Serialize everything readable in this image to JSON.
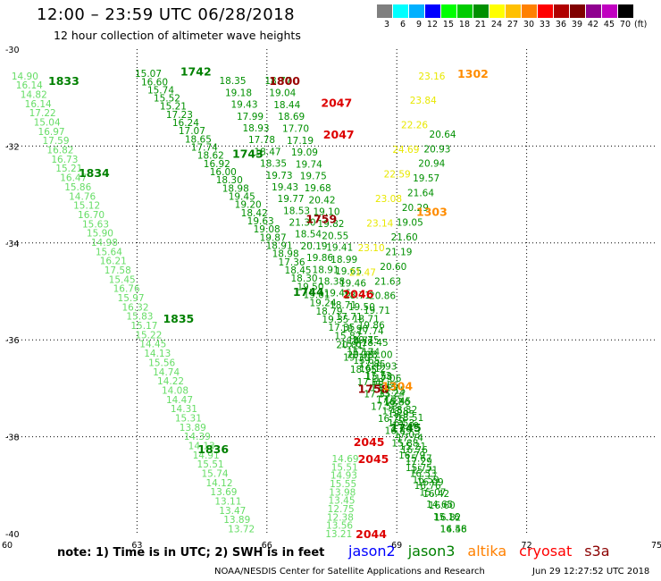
{
  "header": {
    "title": "12:00 – 23:59 UTC 06/28/2018",
    "subtitle": "12 hour collection of altimeter wave heights"
  },
  "legend": {
    "unit": "(ft)",
    "colors": [
      "#7f7f7f",
      "#00ffff",
      "#00b0ff",
      "#0000ff",
      "#00ff00",
      "#00cc00",
      "#009000",
      "#ffff00",
      "#ffc000",
      "#ff8000",
      "#ff0000",
      "#b00000",
      "#800000",
      "#900090",
      "#c000c0",
      "#000000"
    ],
    "labels": [
      "3",
      "6",
      "9",
      "12",
      "15",
      "18",
      "21",
      "24",
      "27",
      "30",
      "33",
      "36",
      "39",
      "42",
      "45",
      "70"
    ]
  },
  "note": "note:  1) Time is in UTC;  2) SWH is in feet",
  "satellites": [
    {
      "name": "jason2",
      "color": "#0000ff"
    },
    {
      "name": "jason3",
      "color": "#008000"
    },
    {
      "name": "altika",
      "color": "#ff8000"
    },
    {
      "name": "cryosat",
      "color": "#ff0000"
    },
    {
      "name": "s3a",
      "color": "#8b0000"
    }
  ],
  "footer": {
    "credit": "NOAA/NESDIS Center for Satellite Applications and Research",
    "timestamp": "Jun 29 12:27:52 UTC 2018"
  },
  "chart_data": {
    "type": "scatter",
    "xlim": [
      60,
      75
    ],
    "ylim": [
      -40,
      -30
    ],
    "x_ticks": [
      60,
      63,
      66,
      69,
      72,
      75
    ],
    "y_ticks": [
      -30,
      -32,
      -34,
      -36,
      -38,
      -40
    ],
    "grid": true,
    "colors": {
      "pale": "#66dd66",
      "green": "#009000",
      "yellow": "#e8e800",
      "time": "#008000",
      "red": "#dd0000",
      "orange": "#ff8c00",
      "maroon": "#990000"
    },
    "series": [
      {
        "name": "track A",
        "c": "pale",
        "x0": 60.1,
        "y0": -30.55,
        "x1": 65.1,
        "y1": -39.9,
        "values": [
          "14.90",
          "16.14",
          "14.82",
          "16.14",
          "17.22",
          "15.04",
          "16.97",
          "17.59",
          "16.82",
          "16.73",
          "15.21",
          "16.47",
          "15.86",
          "14.76",
          "15.12",
          "16.70",
          "15.63",
          "15.90",
          "14.98",
          "15.64",
          "16.21",
          "17.58",
          "15.45",
          "16.76",
          "15.97",
          "16.32",
          "15.83",
          "15.17",
          "15.22",
          "14.45",
          "14.13",
          "15.56",
          "14.74",
          "14.22",
          "14.08",
          "14.47",
          "14.31",
          "15.31",
          "13.89",
          "14.39",
          "14.13",
          "14.91",
          "15.51",
          "15.74",
          "14.12",
          "13.69",
          "13.11",
          "13.47",
          "13.89",
          "13.72"
        ]
      },
      {
        "name": "track B",
        "c": "green",
        "x0": 62.95,
        "y0": -30.5,
        "x1": 69.0,
        "y1": -37.6,
        "values": [
          "15.07",
          "16.60",
          "15.74",
          "15.52",
          "15.21",
          "17.23",
          "16.24",
          "17.07",
          "18.65",
          "17.74",
          "18.62",
          "16.92",
          "16.00",
          "18.30",
          "18.98",
          "19.45",
          "19.20",
          "18.42",
          "19.63",
          "19.08",
          "19.87",
          "18.91",
          "18.98",
          "17.36",
          "18.45",
          "18.30",
          "19.50",
          "19.01",
          "19.24",
          "18.79",
          "19.35",
          "17.35",
          "15.82",
          "15.67",
          "16.12",
          "15.65",
          "16.12",
          "15.58",
          "15.86",
          "15.24",
          "15.45",
          "18.32",
          "18.51"
        ]
      },
      {
        "name": "track C",
        "c": "green",
        "x0": 64.9,
        "y0": -30.65,
        "x1": 70.0,
        "y1": -39.9,
        "values": [
          "18.35",
          "19.18",
          "19.43",
          "17.99",
          "18.93",
          "17.78",
          "18.47",
          "18.35",
          "19.73",
          "19.43",
          "19.77",
          "18.53",
          "21.30",
          "18.54",
          "20.19",
          "19.86",
          "18.91",
          "18.38",
          "19.46",
          "18.71",
          "17.71",
          "18.90",
          "18.71",
          "17.74",
          "17.85",
          "17.73",
          "17.15",
          "17.35",
          "17.58",
          "16.53",
          "17.03",
          "15.21",
          "15.67",
          "15.71",
          "16.09",
          "16.42",
          "16.60",
          "16.82",
          "16.48"
        ]
      },
      {
        "name": "track D",
        "c": "green",
        "x0": 65.95,
        "y0": -30.65,
        "x1": 69.4,
        "y1": -39.0,
        "values": [
          "18.77",
          "19.04",
          "18.44",
          "18.69",
          "17.70",
          "17.19",
          "19.09",
          "19.74",
          "19.75",
          "19.68",
          "20.42",
          "19.10",
          "19.82",
          "20.55",
          "19.41",
          "18.99",
          "19.65",
          "19.46",
          "18.71",
          "19.50",
          "18.71",
          "17.74",
          "18.45",
          "18.00",
          "18.93",
          "17.06",
          "17.15",
          "16.86",
          "18.95",
          "17.40",
          "17.74",
          "16.76",
          "17.29",
          "16.53",
          "16.76"
        ]
      },
      {
        "name": "track E",
        "c": "yellow",
        "x0": 69.5,
        "y0": -30.55,
        "x1": 67.9,
        "y1": -34.6,
        "values": [
          "23.16",
          "23.84",
          "22.26",
          "24.69",
          "22.59",
          "23.08",
          "23.14",
          "23.10",
          "21.47"
        ]
      },
      {
        "name": "track F",
        "c": "green",
        "x0": 69.75,
        "y0": -31.75,
        "x1": 67.85,
        "y1": -36.3,
        "values": [
          "20.64",
          "20.93",
          "20.94",
          "19.57",
          "21.64",
          "20.29",
          "19.05",
          "21.60",
          "21.19",
          "20.60",
          "21.63",
          "20.86",
          "19.71",
          "19.86",
          "19.75",
          "20.38"
        ]
      },
      {
        "name": "track G",
        "c": "green",
        "x0": 67.6,
        "y0": -36.1,
        "x1": 70.0,
        "y1": -39.9,
        "values": [
          "20.81",
          "19.30",
          "18.95",
          "17.68",
          "17.35",
          "17.53",
          "16.76",
          "16.89",
          "15.88",
          "16.79",
          "15.75",
          "16.59",
          "15.07",
          "14.65",
          "15.16",
          "14.56"
        ]
      },
      {
        "name": "track H",
        "c": "pale",
        "x0": 67.5,
        "y0": -38.45,
        "x1": 67.35,
        "y1": -40.0,
        "values": [
          "14.69",
          "15.51",
          "14.93",
          "15.55",
          "13.98",
          "13.45",
          "12.75",
          "12.38",
          "13.56",
          "13.21"
        ]
      }
    ],
    "annotations": [
      {
        "text": "1742",
        "x": 64.0,
        "y": -30.45,
        "c": "time"
      },
      {
        "text": "1800",
        "x": 66.05,
        "y": -30.65,
        "c": "maroon"
      },
      {
        "text": "2047",
        "x": 67.25,
        "y": -31.1,
        "c": "red"
      },
      {
        "text": "2047",
        "x": 67.3,
        "y": -31.75,
        "c": "red"
      },
      {
        "text": "1302",
        "x": 70.4,
        "y": -30.5,
        "c": "orange"
      },
      {
        "text": "1833",
        "x": 60.95,
        "y": -30.65,
        "c": "time"
      },
      {
        "text": "1743",
        "x": 65.2,
        "y": -32.15,
        "c": "time"
      },
      {
        "text": "1834",
        "x": 61.65,
        "y": -32.55,
        "c": "time"
      },
      {
        "text": "1303",
        "x": 69.45,
        "y": -33.35,
        "c": "orange"
      },
      {
        "text": "1759",
        "x": 66.9,
        "y": -33.5,
        "c": "maroon"
      },
      {
        "text": "1744",
        "x": 66.6,
        "y": -35.0,
        "c": "time"
      },
      {
        "text": "2046",
        "x": 67.75,
        "y": -35.05,
        "c": "red"
      },
      {
        "text": "1835",
        "x": 63.6,
        "y": -35.55,
        "c": "time"
      },
      {
        "text": "1758",
        "x": 68.1,
        "y": -37.0,
        "c": "maroon"
      },
      {
        "text": "1304",
        "x": 68.65,
        "y": -36.95,
        "c": "orange"
      },
      {
        "text": "1745",
        "x": 68.85,
        "y": -37.8,
        "c": "time"
      },
      {
        "text": "1836",
        "x": 64.4,
        "y": -38.25,
        "c": "time"
      },
      {
        "text": "2045",
        "x": 68.0,
        "y": -38.1,
        "c": "red"
      },
      {
        "text": "2045",
        "x": 68.1,
        "y": -38.45,
        "c": "red"
      },
      {
        "text": "2044",
        "x": 68.05,
        "y": -40.0,
        "c": "red"
      }
    ]
  }
}
